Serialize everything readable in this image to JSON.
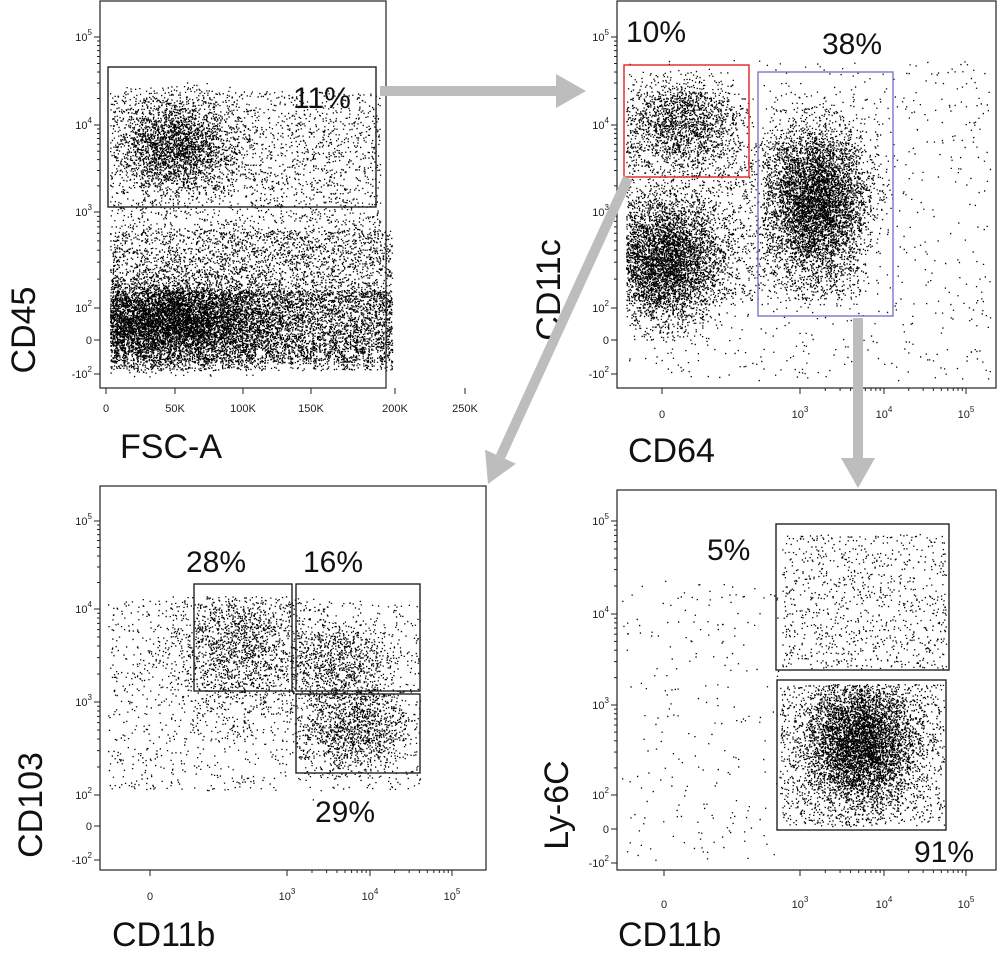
{
  "chart_data": [
    {
      "id": "p1",
      "type": "scatter",
      "xlabel": "FSC-A",
      "ylabel": "CD45",
      "x_scale": "linear",
      "y_scale": "biexponential",
      "x_ticks": [
        "0",
        "50K",
        "100K",
        "150K",
        "200K",
        "250K"
      ],
      "y_ticks": [
        {
          "base": "10",
          "exp": "5"
        },
        {
          "base": "10",
          "exp": "4"
        },
        {
          "base": "10",
          "exp": "3"
        },
        {
          "base": "10",
          "exp": "2"
        },
        {
          "base": "0",
          "exp": ""
        },
        {
          "base": "-10",
          "exp": "2"
        }
      ],
      "gates": [
        {
          "name": "gate-cd45-positive",
          "label": "11%",
          "color": "#222222"
        }
      ]
    },
    {
      "id": "p2",
      "type": "scatter",
      "xlabel": "CD64",
      "ylabel": "CD11c",
      "x_scale": "biexponential",
      "y_scale": "biexponential",
      "x_ticks": [
        {
          "base": "0",
          "exp": ""
        },
        {
          "base": "10",
          "exp": "3"
        },
        {
          "base": "10",
          "exp": "4"
        },
        {
          "base": "10",
          "exp": "5"
        }
      ],
      "y_ticks": [
        {
          "base": "10",
          "exp": "5"
        },
        {
          "base": "10",
          "exp": "4"
        },
        {
          "base": "10",
          "exp": "3"
        },
        {
          "base": "10",
          "exp": "2"
        },
        {
          "base": "0",
          "exp": ""
        },
        {
          "base": "-10",
          "exp": "2"
        }
      ],
      "gates": [
        {
          "name": "gate-cd11c-high",
          "label": "10%",
          "color": "#e02020"
        },
        {
          "name": "gate-cd64-positive",
          "label": "38%",
          "color": "#7777cc"
        }
      ]
    },
    {
      "id": "p3",
      "type": "scatter",
      "xlabel": "CD11b",
      "ylabel": "CD103",
      "x_scale": "biexponential",
      "y_scale": "biexponential",
      "x_ticks": [
        {
          "base": "0",
          "exp": ""
        },
        {
          "base": "10",
          "exp": "3"
        },
        {
          "base": "10",
          "exp": "4"
        },
        {
          "base": "10",
          "exp": "5"
        }
      ],
      "y_ticks": [
        {
          "base": "10",
          "exp": "5"
        },
        {
          "base": "10",
          "exp": "4"
        },
        {
          "base": "10",
          "exp": "3"
        },
        {
          "base": "10",
          "exp": "2"
        },
        {
          "base": "0",
          "exp": ""
        },
        {
          "base": "-10",
          "exp": "2"
        }
      ],
      "gates": [
        {
          "name": "gate-cd103-pos-cd11b-neg",
          "label": "28%",
          "color": "#222222"
        },
        {
          "name": "gate-cd103-pos-cd11b-pos",
          "label": "16%",
          "color": "#222222"
        },
        {
          "name": "gate-cd103-neg-cd11b-pos",
          "label": "29%",
          "color": "#222222"
        }
      ]
    },
    {
      "id": "p4",
      "type": "scatter",
      "xlabel": "CD11b",
      "ylabel": "Ly-6C",
      "x_scale": "biexponential",
      "y_scale": "biexponential",
      "x_ticks": [
        {
          "base": "0",
          "exp": ""
        },
        {
          "base": "10",
          "exp": "3"
        },
        {
          "base": "10",
          "exp": "4"
        },
        {
          "base": "10",
          "exp": "5"
        }
      ],
      "y_ticks": [
        {
          "base": "10",
          "exp": "5"
        },
        {
          "base": "10",
          "exp": "4"
        },
        {
          "base": "10",
          "exp": "3"
        },
        {
          "base": "10",
          "exp": "2"
        },
        {
          "base": "0",
          "exp": ""
        },
        {
          "base": "-10",
          "exp": "2"
        }
      ],
      "gates": [
        {
          "name": "gate-ly6c-high",
          "label": "5%",
          "color": "#222222"
        },
        {
          "name": "gate-ly6c-low",
          "label": "91%",
          "color": "#222222"
        }
      ]
    }
  ],
  "colors": {
    "dots": "#000000",
    "arrows": "#bdbdbd",
    "frame": "#222222"
  }
}
